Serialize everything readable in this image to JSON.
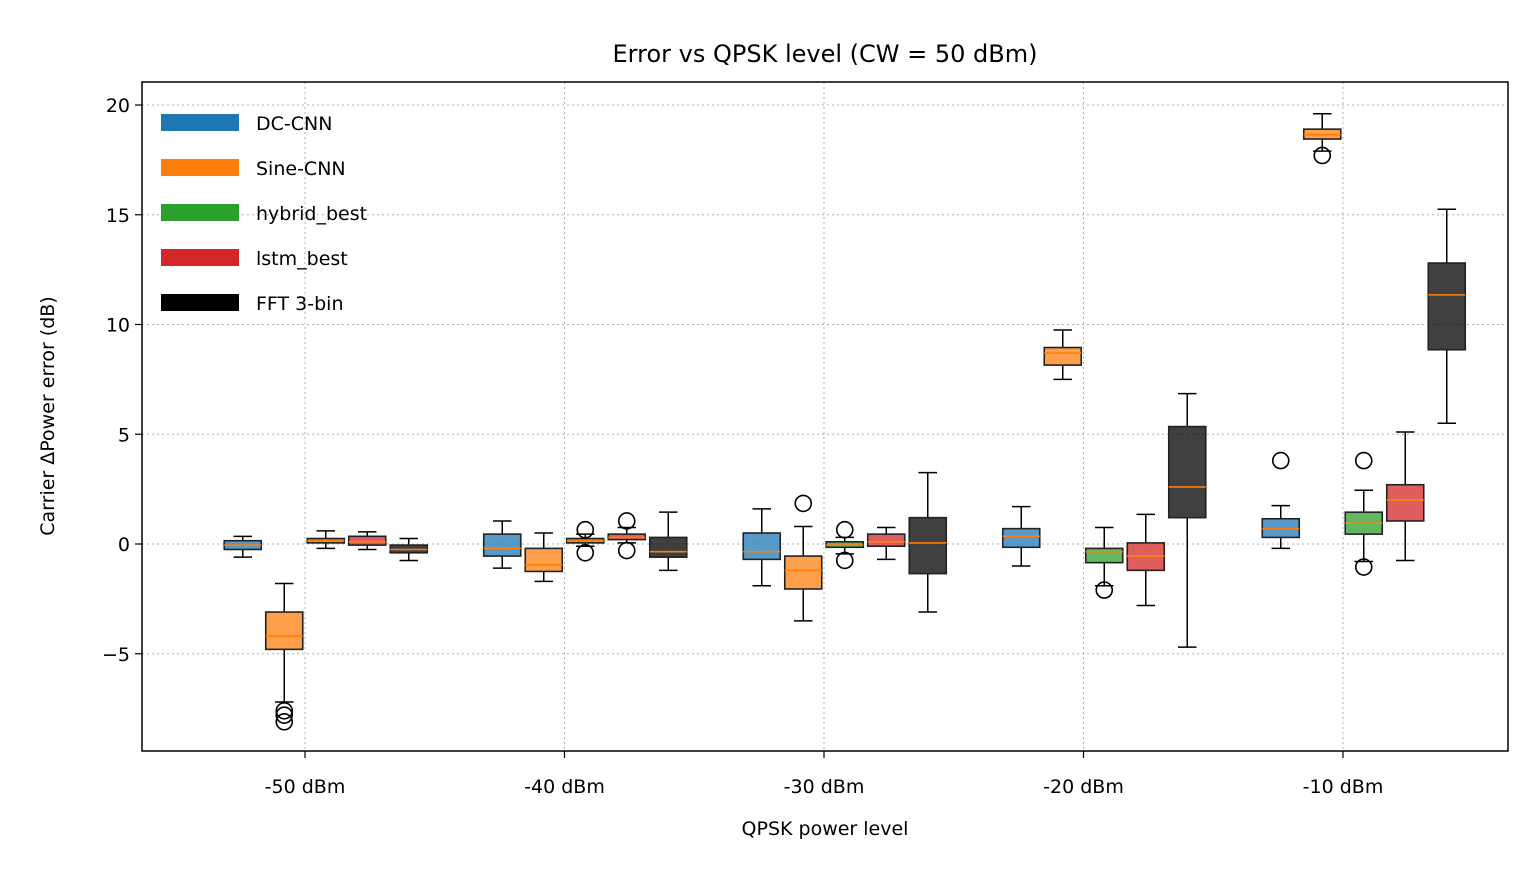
{
  "chart_data": {
    "type": "box",
    "title": "Error vs QPSK level  (CW = 50 dBm)",
    "xlabel": "QPSK power level",
    "ylabel": "Carrier ΔPower error (dB)",
    "categories": [
      "-50 dBm",
      "-40 dBm",
      "-30 dBm",
      "-20 dBm",
      "-10 dBm"
    ],
    "ylim": [
      -9.5,
      21
    ],
    "yticks": [
      -5,
      0,
      5,
      10,
      15,
      20
    ],
    "ytick_labels": [
      "−5",
      "0",
      "5",
      "10",
      "15",
      "20"
    ],
    "grid": true,
    "legend_position": "top-left",
    "median_color": "#ff7f0e",
    "series": [
      {
        "name": "DC-CNN",
        "color": "#1f77b4",
        "boxes": [
          {
            "whislo": -0.6,
            "q1": -0.25,
            "med": -0.05,
            "q3": 0.15,
            "whishi": 0.35,
            "fliers": []
          },
          {
            "whislo": -1.1,
            "q1": -0.55,
            "med": -0.2,
            "q3": 0.45,
            "whishi": 1.05,
            "fliers": []
          },
          {
            "whislo": -1.9,
            "q1": -0.7,
            "med": -0.35,
            "q3": 0.5,
            "whishi": 1.6,
            "fliers": []
          },
          {
            "whislo": -1.0,
            "q1": -0.15,
            "med": 0.35,
            "q3": 0.7,
            "whishi": 1.7,
            "fliers": []
          },
          {
            "whislo": -0.2,
            "q1": 0.3,
            "med": 0.7,
            "q3": 1.15,
            "whishi": 1.75,
            "fliers": [
              3.8
            ]
          }
        ]
      },
      {
        "name": "Sine-CNN",
        "color": "#ff7f0e",
        "boxes": [
          {
            "whislo": -7.2,
            "q1": -4.8,
            "med": -4.2,
            "q3": -3.1,
            "whishi": -1.8,
            "fliers": [
              -7.6,
              -7.8,
              -8.1
            ]
          },
          {
            "whislo": -1.7,
            "q1": -1.25,
            "med": -0.95,
            "q3": -0.2,
            "whishi": 0.5,
            "fliers": []
          },
          {
            "whislo": -3.5,
            "q1": -2.05,
            "med": -1.2,
            "q3": -0.55,
            "whishi": 0.8,
            "fliers": [
              1.85
            ]
          },
          {
            "whislo": 7.5,
            "q1": 8.15,
            "med": 8.7,
            "q3": 8.95,
            "whishi": 9.75,
            "fliers": []
          },
          {
            "whislo": 17.9,
            "q1": 18.45,
            "med": 18.65,
            "q3": 18.9,
            "whishi": 19.6,
            "fliers": [
              17.7
            ]
          }
        ]
      },
      {
        "name": "hybrid_best",
        "color": "#2ca02c",
        "boxes": [
          {
            "whislo": -0.2,
            "q1": 0.05,
            "med": 0.15,
            "q3": 0.25,
            "whishi": 0.6,
            "fliers": []
          },
          {
            "whislo": -0.1,
            "q1": 0.05,
            "med": 0.15,
            "q3": 0.25,
            "whishi": 0.45,
            "fliers": [
              0.65,
              -0.4
            ]
          },
          {
            "whislo": -0.45,
            "q1": -0.15,
            "med": -0.05,
            "q3": 0.1,
            "whishi": 0.3,
            "fliers": [
              0.65,
              -0.75
            ]
          },
          {
            "whislo": -1.9,
            "q1": -0.85,
            "med": -0.35,
            "q3": -0.2,
            "whishi": 0.75,
            "fliers": [
              -2.1
            ]
          },
          {
            "whislo": -0.8,
            "q1": 0.45,
            "med": 0.95,
            "q3": 1.45,
            "whishi": 2.45,
            "fliers": [
              3.8,
              -1.05
            ]
          }
        ]
      },
      {
        "name": "lstm_best",
        "color": "#d62728",
        "boxes": [
          {
            "whislo": -0.25,
            "q1": -0.05,
            "med": 0.1,
            "q3": 0.35,
            "whishi": 0.55,
            "fliers": []
          },
          {
            "whislo": 0.05,
            "q1": 0.2,
            "med": 0.3,
            "q3": 0.45,
            "whishi": 0.75,
            "fliers": [
              1.05,
              -0.3
            ]
          },
          {
            "whislo": -0.7,
            "q1": -0.1,
            "med": 0.1,
            "q3": 0.45,
            "whishi": 0.75,
            "fliers": []
          },
          {
            "whislo": -2.8,
            "q1": -1.2,
            "med": -0.55,
            "q3": 0.05,
            "whishi": 1.35,
            "fliers": []
          },
          {
            "whislo": -0.75,
            "q1": 1.05,
            "med": 2.0,
            "q3": 2.7,
            "whishi": 5.1,
            "fliers": []
          }
        ]
      },
      {
        "name": "FFT 3-bin",
        "color": "#000000",
        "boxes": [
          {
            "whislo": -0.75,
            "q1": -0.4,
            "med": -0.25,
            "q3": -0.05,
            "whishi": 0.25,
            "fliers": []
          },
          {
            "whislo": -1.2,
            "q1": -0.6,
            "med": -0.35,
            "q3": 0.3,
            "whishi": 1.45,
            "fliers": []
          },
          {
            "whislo": -3.1,
            "q1": -1.35,
            "med": 0.05,
            "q3": 1.2,
            "whishi": 3.25,
            "fliers": []
          },
          {
            "whislo": -4.7,
            "q1": 1.2,
            "med": 2.6,
            "q3": 5.35,
            "whishi": 6.85,
            "fliers": []
          },
          {
            "whislo": 5.5,
            "q1": 8.85,
            "med": 11.35,
            "q3": 12.8,
            "whishi": 15.25,
            "fliers": []
          }
        ]
      }
    ]
  }
}
